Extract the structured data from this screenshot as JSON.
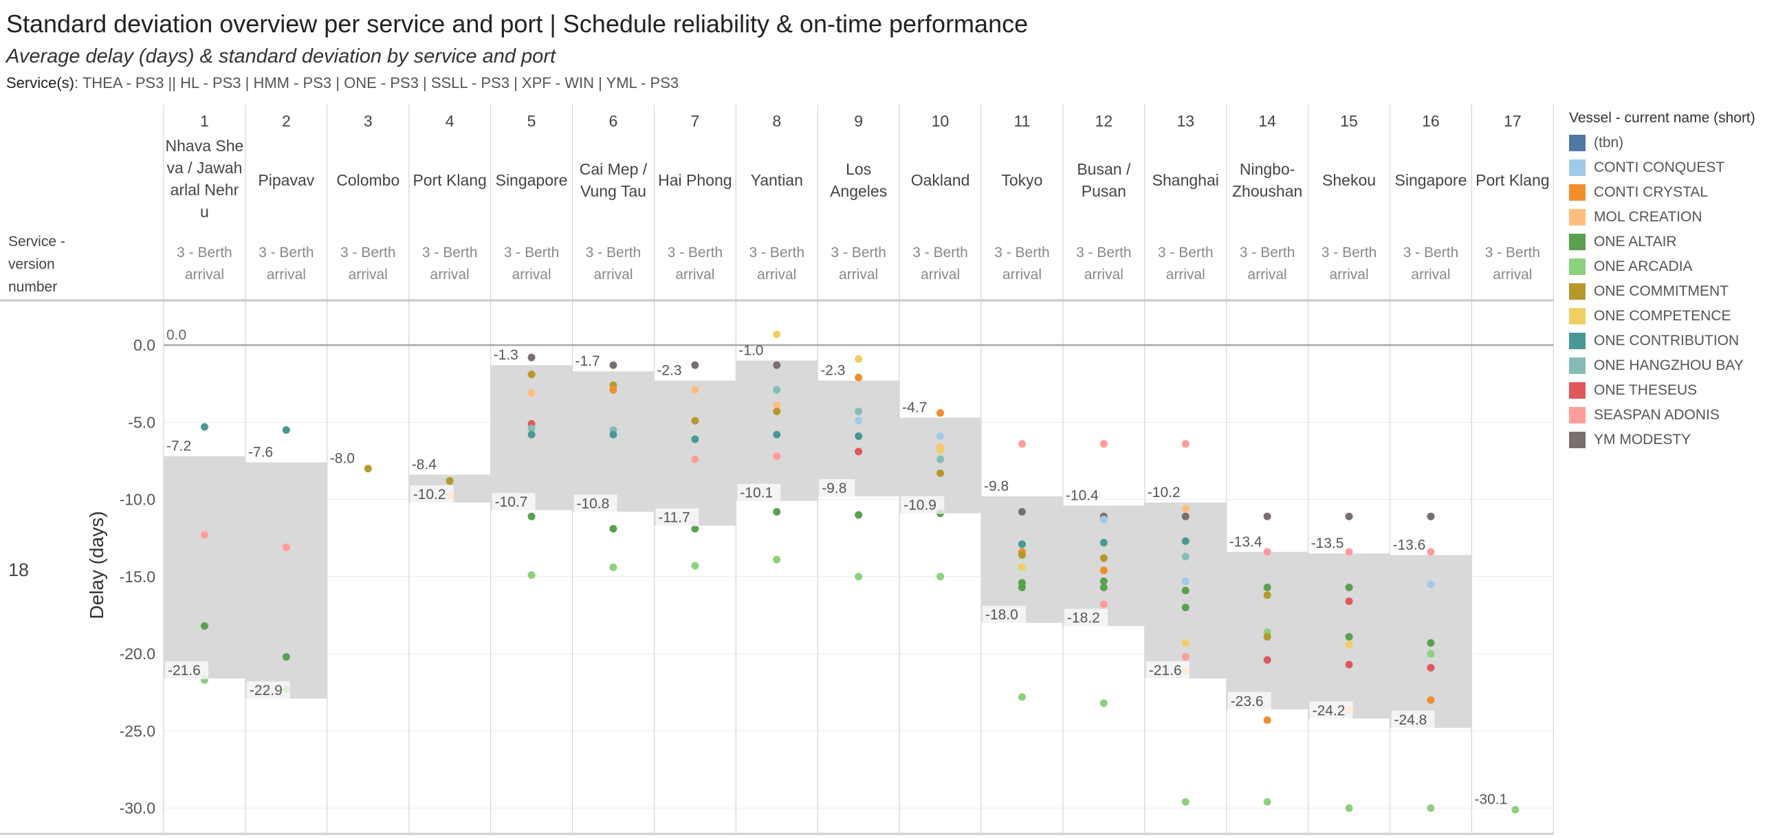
{
  "title": "Standard deviation overview per service and port  |  Schedule reliability & on-time performance",
  "subtitle": "Average delay (days) & standard deviation by service and port",
  "services": {
    "label": "Service(s)",
    "value": ": THEA - PS3 || HL - PS3 | HMM - PS3 | ONE - PS3 | SSLL - PS3 | XPF - WIN | YML - PS3"
  },
  "row_header": [
    "Service -",
    "version",
    "number"
  ],
  "row_value": "18",
  "legend": {
    "title": "Vessel - current name (short)",
    "items": [
      {
        "name": "(tbn)",
        "color": "#4e79a7"
      },
      {
        "name": "CONTI CONQUEST",
        "color": "#a0cbe8"
      },
      {
        "name": "CONTI CRYSTAL",
        "color": "#f28e2b"
      },
      {
        "name": "MOL CREATION",
        "color": "#ffbe7d"
      },
      {
        "name": "ONE ALTAIR",
        "color": "#59a14f"
      },
      {
        "name": "ONE ARCADIA",
        "color": "#8cd17d"
      },
      {
        "name": "ONE COMMITMENT",
        "color": "#b6992d"
      },
      {
        "name": "ONE COMPETENCE",
        "color": "#f1ce63"
      },
      {
        "name": "ONE CONTRIBUTION",
        "color": "#499894"
      },
      {
        "name": "ONE HANGZHOU BAY",
        "color": "#86bcb6"
      },
      {
        "name": "ONE THESEUS",
        "color": "#e15759"
      },
      {
        "name": "SEASPAN ADONIS",
        "color": "#ff9d9a"
      },
      {
        "name": "YM MODESTY",
        "color": "#79706e"
      }
    ]
  },
  "chart_data": {
    "type": "scatter",
    "ylabel": "Delay (days)",
    "ylim": [
      -31.5,
      1.5
    ],
    "yticks": [
      0,
      -5,
      -10,
      -15,
      -20,
      -25,
      -30
    ],
    "ytick_labels": [
      "0.0",
      "-5.0",
      "-10.0",
      "-15.0",
      "-20.0",
      "-25.0",
      "-30.0"
    ],
    "sublabel": [
      "3 - Berth",
      "arrival"
    ],
    "ports": [
      {
        "n": "1",
        "name": [
          "Nhava She",
          "va / Jawah",
          "arlal Nehr",
          "u"
        ],
        "band": [
          -7.2,
          -21.6
        ],
        "top": "-7.2",
        "bottom": "-21.6",
        "extra": "0.0",
        "points": [
          [
            -5.3,
            "ONE CONTRIBUTION"
          ],
          [
            -12.3,
            "SEASPAN ADONIS"
          ],
          [
            -18.2,
            "ONE ALTAIR"
          ],
          [
            -21.7,
            "ONE ARCADIA"
          ]
        ]
      },
      {
        "n": "2",
        "name": [
          "Pipavav"
        ],
        "band": [
          -7.6,
          -22.9
        ],
        "top": "-7.6",
        "bottom": "-22.9",
        "points": [
          [
            -5.5,
            "ONE CONTRIBUTION"
          ],
          [
            -13.1,
            "SEASPAN ADONIS"
          ],
          [
            -20.2,
            "ONE ALTAIR"
          ],
          [
            -22.3,
            "ONE ARCADIA"
          ]
        ]
      },
      {
        "n": "3",
        "name": [
          "Colombo"
        ],
        "band": null,
        "top": "-8.0",
        "bottom": "",
        "points": [
          [
            -8.0,
            "ONE COMMITMENT"
          ]
        ]
      },
      {
        "n": "4",
        "name": [
          "Port Klang"
        ],
        "band": [
          -8.4,
          -10.2
        ],
        "top": "-8.4",
        "bottom": "-10.2",
        "points": [
          [
            -8.8,
            "ONE COMMITMENT"
          ],
          [
            -9.8,
            "MOL CREATION"
          ]
        ]
      },
      {
        "n": "5",
        "name": [
          "Singapore"
        ],
        "band": [
          -1.3,
          -10.7
        ],
        "top": "-1.3",
        "bottom": "-10.7",
        "points": [
          [
            -0.8,
            "YM MODESTY"
          ],
          [
            -1.9,
            "ONE COMMITMENT"
          ],
          [
            -3.1,
            "MOL CREATION"
          ],
          [
            -5.1,
            "ONE THESEUS"
          ],
          [
            -5.4,
            "ONE HANGZHOU BAY"
          ],
          [
            -5.8,
            "ONE CONTRIBUTION"
          ],
          [
            -11.1,
            "ONE ALTAIR"
          ],
          [
            -14.9,
            "ONE ARCADIA"
          ]
        ]
      },
      {
        "n": "6",
        "name": [
          "Cai Mep /",
          "Vung Tau"
        ],
        "band": [
          -1.7,
          -10.8
        ],
        "top": "-1.7",
        "bottom": "-10.8",
        "points": [
          [
            -1.3,
            "YM MODESTY"
          ],
          [
            -2.6,
            "ONE COMMITMENT"
          ],
          [
            -2.9,
            "CONTI CRYSTAL"
          ],
          [
            -5.5,
            "ONE HANGZHOU BAY"
          ],
          [
            -5.8,
            "ONE CONTRIBUTION"
          ],
          [
            -11.9,
            "ONE ALTAIR"
          ],
          [
            -14.4,
            "ONE ARCADIA"
          ]
        ]
      },
      {
        "n": "7",
        "name": [
          "Hai Phong"
        ],
        "band": [
          -2.3,
          -11.7
        ],
        "top": "-2.3",
        "bottom": "-11.7",
        "points": [
          [
            -1.3,
            "YM MODESTY"
          ],
          [
            -2.9,
            "MOL CREATION"
          ],
          [
            -4.9,
            "ONE COMMITMENT"
          ],
          [
            -6.1,
            "ONE CONTRIBUTION"
          ],
          [
            -7.4,
            "SEASPAN ADONIS"
          ],
          [
            -11.9,
            "ONE ALTAIR"
          ],
          [
            -14.3,
            "ONE ARCADIA"
          ]
        ]
      },
      {
        "n": "8",
        "name": [
          "Yantian"
        ],
        "band": [
          -1.0,
          -10.1
        ],
        "top": "-1.0",
        "bottom": "-10.1",
        "points": [
          [
            0.7,
            "ONE COMPETENCE"
          ],
          [
            -1.3,
            "YM MODESTY"
          ],
          [
            -2.9,
            "ONE HANGZHOU BAY"
          ],
          [
            -3.9,
            "MOL CREATION"
          ],
          [
            -4.3,
            "ONE COMMITMENT"
          ],
          [
            -5.8,
            "ONE CONTRIBUTION"
          ],
          [
            -7.2,
            "SEASPAN ADONIS"
          ],
          [
            -10.8,
            "ONE ALTAIR"
          ],
          [
            -13.9,
            "ONE ARCADIA"
          ]
        ]
      },
      {
        "n": "9",
        "name": [
          "Los",
          "Angeles"
        ],
        "band": [
          -2.3,
          -9.8
        ],
        "top": "-2.3",
        "bottom": "-9.8",
        "points": [
          [
            -0.9,
            "ONE COMPETENCE"
          ],
          [
            -2.1,
            "CONTI CRYSTAL"
          ],
          [
            -4.3,
            "ONE HANGZHOU BAY"
          ],
          [
            -4.9,
            "CONTI CONQUEST"
          ],
          [
            -5.9,
            "ONE CONTRIBUTION"
          ],
          [
            -6.9,
            "ONE THESEUS"
          ],
          [
            -11.0,
            "ONE ALTAIR"
          ],
          [
            -15.0,
            "ONE ARCADIA"
          ]
        ]
      },
      {
        "n": "10",
        "name": [
          "Oakland"
        ],
        "band": [
          -4.7,
          -10.9
        ],
        "top": "-4.7",
        "bottom": "-10.9",
        "points": [
          [
            -4.4,
            "CONTI CRYSTAL"
          ],
          [
            -5.9,
            "CONTI CONQUEST"
          ],
          [
            -6.6,
            "MOL CREATION"
          ],
          [
            -6.8,
            "ONE COMPETENCE"
          ],
          [
            -7.4,
            "ONE HANGZHOU BAY"
          ],
          [
            -8.3,
            "ONE COMMITMENT"
          ],
          [
            -10.9,
            "ONE ALTAIR"
          ],
          [
            -15.0,
            "ONE ARCADIA"
          ]
        ]
      },
      {
        "n": "11",
        "name": [
          "Tokyo"
        ],
        "band": [
          -9.8,
          -18.0
        ],
        "top": "-9.8",
        "bottom": "-18.0",
        "points": [
          [
            -6.4,
            "SEASPAN ADONIS"
          ],
          [
            -10.8,
            "YM MODESTY"
          ],
          [
            -12.9,
            "ONE CONTRIBUTION"
          ],
          [
            -13.4,
            "CONTI CRYSTAL"
          ],
          [
            -13.6,
            "ONE COMMITMENT"
          ],
          [
            -14.4,
            "ONE COMPETENCE"
          ],
          [
            -15.4,
            "ONE ALTAIR"
          ],
          [
            -15.7,
            "ONE ALTAIR"
          ],
          [
            -22.8,
            "ONE ARCADIA"
          ]
        ]
      },
      {
        "n": "12",
        "name": [
          "Busan /",
          "Pusan"
        ],
        "band": [
          -10.4,
          -18.2
        ],
        "top": "-10.4",
        "bottom": "-18.2",
        "points": [
          [
            -6.4,
            "SEASPAN ADONIS"
          ],
          [
            -11.1,
            "YM MODESTY"
          ],
          [
            -11.3,
            "CONTI CONQUEST"
          ],
          [
            -12.8,
            "ONE CONTRIBUTION"
          ],
          [
            -13.8,
            "ONE COMMITMENT"
          ],
          [
            -14.6,
            "CONTI CRYSTAL"
          ],
          [
            -15.3,
            "ONE ALTAIR"
          ],
          [
            -15.7,
            "ONE ALTAIR"
          ],
          [
            -16.8,
            "SEASPAN ADONIS"
          ],
          [
            -23.2,
            "ONE ARCADIA"
          ]
        ]
      },
      {
        "n": "13",
        "name": [
          "Shanghai"
        ],
        "band": [
          -10.2,
          -21.6
        ],
        "top": "-10.2",
        "bottom": "-21.6",
        "points": [
          [
            -6.4,
            "SEASPAN ADONIS"
          ],
          [
            -10.6,
            "MOL CREATION"
          ],
          [
            -11.1,
            "YM MODESTY"
          ],
          [
            -12.7,
            "ONE CONTRIBUTION"
          ],
          [
            -13.7,
            "ONE HANGZHOU BAY"
          ],
          [
            -15.3,
            "CONTI CONQUEST"
          ],
          [
            -15.9,
            "ONE ALTAIR"
          ],
          [
            -17.0,
            "ONE ALTAIR"
          ],
          [
            -19.3,
            "ONE COMPETENCE"
          ],
          [
            -20.2,
            "SEASPAN ADONIS"
          ],
          [
            -21.1,
            "MOL CREATION"
          ],
          [
            -29.6,
            "ONE ARCADIA"
          ]
        ]
      },
      {
        "n": "14",
        "name": [
          "Ningbo-",
          "Zhoushan"
        ],
        "band": [
          -13.4,
          -23.6
        ],
        "top": "-13.4",
        "bottom": "-23.6",
        "points": [
          [
            -11.1,
            "YM MODESTY"
          ],
          [
            -13.4,
            "SEASPAN ADONIS"
          ],
          [
            -15.7,
            "ONE ALTAIR"
          ],
          [
            -16.2,
            "ONE COMMITMENT"
          ],
          [
            -18.6,
            "ONE ARCADIA"
          ],
          [
            -18.9,
            "ONE COMMITMENT"
          ],
          [
            -20.4,
            "ONE THESEUS"
          ],
          [
            -24.3,
            "CONTI CRYSTAL"
          ],
          [
            -29.6,
            "ONE ARCADIA"
          ]
        ]
      },
      {
        "n": "15",
        "name": [
          "Shekou"
        ],
        "band": [
          -13.5,
          -24.2
        ],
        "top": "-13.5",
        "bottom": "-24.2",
        "points": [
          [
            -11.1,
            "YM MODESTY"
          ],
          [
            -13.4,
            "SEASPAN ADONIS"
          ],
          [
            -15.7,
            "ONE ALTAIR"
          ],
          [
            -16.6,
            "ONE THESEUS"
          ],
          [
            -18.9,
            "ONE ALTAIR"
          ],
          [
            -19.4,
            "ONE COMPETENCE"
          ],
          [
            -20.7,
            "ONE THESEUS"
          ],
          [
            -23.6,
            "MOL CREATION"
          ],
          [
            -30.0,
            "ONE ARCADIA"
          ]
        ]
      },
      {
        "n": "16",
        "name": [
          "Singapore"
        ],
        "band": [
          -13.6,
          -24.8
        ],
        "top": "-13.6",
        "bottom": "-24.8",
        "points": [
          [
            -11.1,
            "YM MODESTY"
          ],
          [
            -13.4,
            "SEASPAN ADONIS"
          ],
          [
            -15.5,
            "CONTI CONQUEST"
          ],
          [
            -19.3,
            "ONE ALTAIR"
          ],
          [
            -20.0,
            "ONE ARCADIA"
          ],
          [
            -20.9,
            "ONE THESEUS"
          ],
          [
            -23.0,
            "CONTI CRYSTAL"
          ],
          [
            -30.0,
            "ONE ARCADIA"
          ]
        ]
      },
      {
        "n": "17",
        "name": [
          "Port Klang"
        ],
        "band": null,
        "top": "-30.1",
        "bottom": "",
        "points": [
          [
            -30.1,
            "ONE ARCADIA"
          ]
        ]
      }
    ]
  }
}
